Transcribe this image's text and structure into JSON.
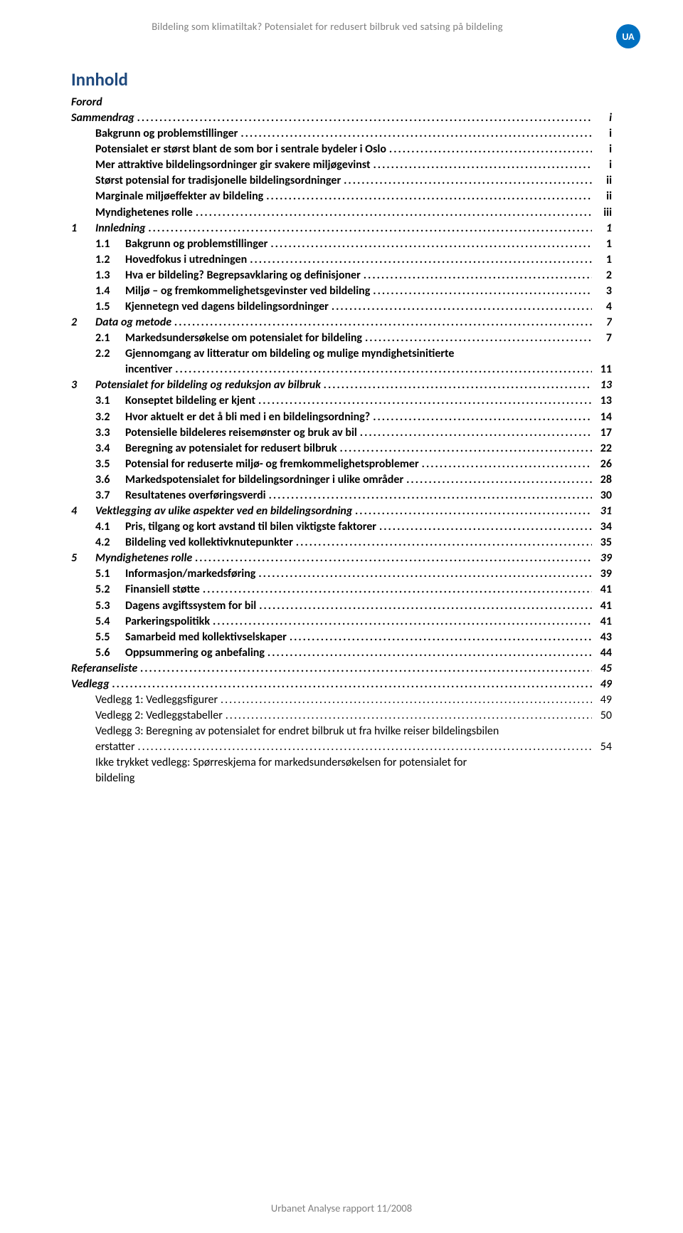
{
  "header": {
    "running_title": "Bildeling som klimatiltak? Potensialet for redusert bilbruk ved satsing på bildeling",
    "badge": "UA"
  },
  "title": "Innhold",
  "footer": "Urbanet Analyse rapport 11/2008",
  "colors": {
    "heading": "#1f497d",
    "running": "#7f7f7f",
    "badge_bg": "#0070c0",
    "badge_fg": "#ffffff",
    "text": "#000000",
    "background": "#ffffff"
  },
  "toc": [
    {
      "level": "l1",
      "num": "",
      "label": "Forord",
      "page": ""
    },
    {
      "level": "l1",
      "num": "",
      "label": "Sammendrag",
      "page": "i"
    },
    {
      "level": "l2",
      "num": "",
      "label": "Bakgrunn og problemstillinger",
      "page": "i"
    },
    {
      "level": "l2",
      "num": "",
      "label": "Potensialet er størst blant de som bor i sentrale bydeler i Oslo",
      "page": "i"
    },
    {
      "level": "l2",
      "num": "",
      "label": "Mer attraktive bildelingsordninger gir svakere miljøgevinst",
      "page": "i"
    },
    {
      "level": "l2",
      "num": "",
      "label": "Størst potensial for tradisjonelle bildelingsordninger",
      "page": "ii"
    },
    {
      "level": "l2",
      "num": "",
      "label": "Marginale miljøeffekter av bildeling",
      "page": "ii"
    },
    {
      "level": "l2",
      "num": "",
      "label": "Myndighetenes rolle",
      "page": "iii"
    },
    {
      "level": "l1-ch",
      "num": "1",
      "label": "Innledning",
      "page": "1"
    },
    {
      "level": "l3",
      "num": "1.1",
      "label": "Bakgrunn og problemstillinger",
      "page": "1"
    },
    {
      "level": "l3",
      "num": "1.2",
      "label": "Hovedfokus i utredningen",
      "page": "1"
    },
    {
      "level": "l3",
      "num": "1.3",
      "label": "Hva er bildeling? Begrepsavklaring og definisjoner",
      "page": "2"
    },
    {
      "level": "l3",
      "num": "1.4",
      "label": "Miljø – og fremkommelighetsgevinster ved bildeling",
      "page": "3"
    },
    {
      "level": "l3",
      "num": "1.5",
      "label": "Kjennetegn ved dagens bildelingsordninger",
      "page": "4"
    },
    {
      "level": "l1-ch",
      "num": "2",
      "label": "Data og metode",
      "page": "7"
    },
    {
      "level": "l3",
      "num": "2.1",
      "label": "Markedsundersøkelse om potensialet for bildeling",
      "page": "7"
    },
    {
      "level": "l3",
      "num": "2.2",
      "label": "Gjennomgang av litteratur om bildeling og mulige myndighetsinitierte",
      "page": ""
    },
    {
      "level": "l3-wrap",
      "num": "",
      "label": "incentiver",
      "page": "11"
    },
    {
      "level": "l1-ch",
      "num": "3",
      "label": "Potensialet for bildeling og reduksjon av bilbruk",
      "page": "13"
    },
    {
      "level": "l3",
      "num": "3.1",
      "label": "Konseptet bildeling er kjent",
      "page": "13"
    },
    {
      "level": "l3",
      "num": "3.2",
      "label": "Hvor aktuelt er det å bli med i en bildelingsordning?",
      "page": "14"
    },
    {
      "level": "l3",
      "num": "3.3",
      "label": "Potensielle bildeleres reisemønster og bruk av bil",
      "page": "17"
    },
    {
      "level": "l3",
      "num": "3.4",
      "label": "Beregning av potensialet for redusert bilbruk",
      "page": "22"
    },
    {
      "level": "l3",
      "num": "3.5",
      "label": "Potensial for reduserte miljø- og fremkommelighetsproblemer",
      "page": "26"
    },
    {
      "level": "l3",
      "num": "3.6",
      "label": "Markedspotensialet for bildelingsordninger i ulike områder",
      "page": "28"
    },
    {
      "level": "l3",
      "num": "3.7",
      "label": "Resultatenes overføringsverdi",
      "page": "30"
    },
    {
      "level": "l1-ch",
      "num": "4",
      "label": "Vektlegging av ulike aspekter ved en bildelingsordning",
      "page": "31"
    },
    {
      "level": "l3",
      "num": "4.1",
      "label": "Pris, tilgang og kort avstand til bilen viktigste faktorer",
      "page": "34"
    },
    {
      "level": "l3",
      "num": "4.2",
      "label": "Bildeling ved kollektivknutepunkter",
      "page": "35"
    },
    {
      "level": "l1-ch",
      "num": "5",
      "label": "Myndighetenes rolle",
      "page": "39"
    },
    {
      "level": "l3",
      "num": "5.1",
      "label": "Informasjon/markedsføring",
      "page": "39"
    },
    {
      "level": "l3",
      "num": "5.2",
      "label": "Finansiell støtte",
      "page": "41"
    },
    {
      "level": "l3",
      "num": "5.3",
      "label": "Dagens avgiftssystem for bil",
      "page": "41"
    },
    {
      "level": "l3",
      "num": "5.4",
      "label": "Parkeringspolitikk",
      "page": "41"
    },
    {
      "level": "l3",
      "num": "5.5",
      "label": "Samarbeid med kollektivselskaper",
      "page": "43"
    },
    {
      "level": "l3",
      "num": "5.6",
      "label": "Oppsummering og anbefaling",
      "page": "44"
    },
    {
      "level": "l1",
      "num": "",
      "label": "Referanseliste",
      "page": "45"
    },
    {
      "level": "l1",
      "num": "",
      "label": "Vedlegg",
      "page": "49"
    },
    {
      "level": "l4",
      "num": "",
      "label": "Vedlegg 1: Vedleggsfigurer",
      "page": "49"
    },
    {
      "level": "l4",
      "num": "",
      "label": "Vedlegg 2: Vedleggstabeller",
      "page": "50"
    },
    {
      "level": "l4",
      "num": "",
      "label": "Vedlegg 3: Beregning av potensialet for endret bilbruk ut fra hvilke reiser bildelingsbilen",
      "page": ""
    },
    {
      "level": "l4",
      "num": "",
      "label": "erstatter",
      "page": "54"
    },
    {
      "level": "l4",
      "num": "",
      "label": "Ikke trykket vedlegg:  Spørreskjema for markedsundersøkelsen for potensialet for",
      "page": ""
    },
    {
      "level": "l4",
      "num": "",
      "label": "bildeling",
      "page": ""
    }
  ]
}
